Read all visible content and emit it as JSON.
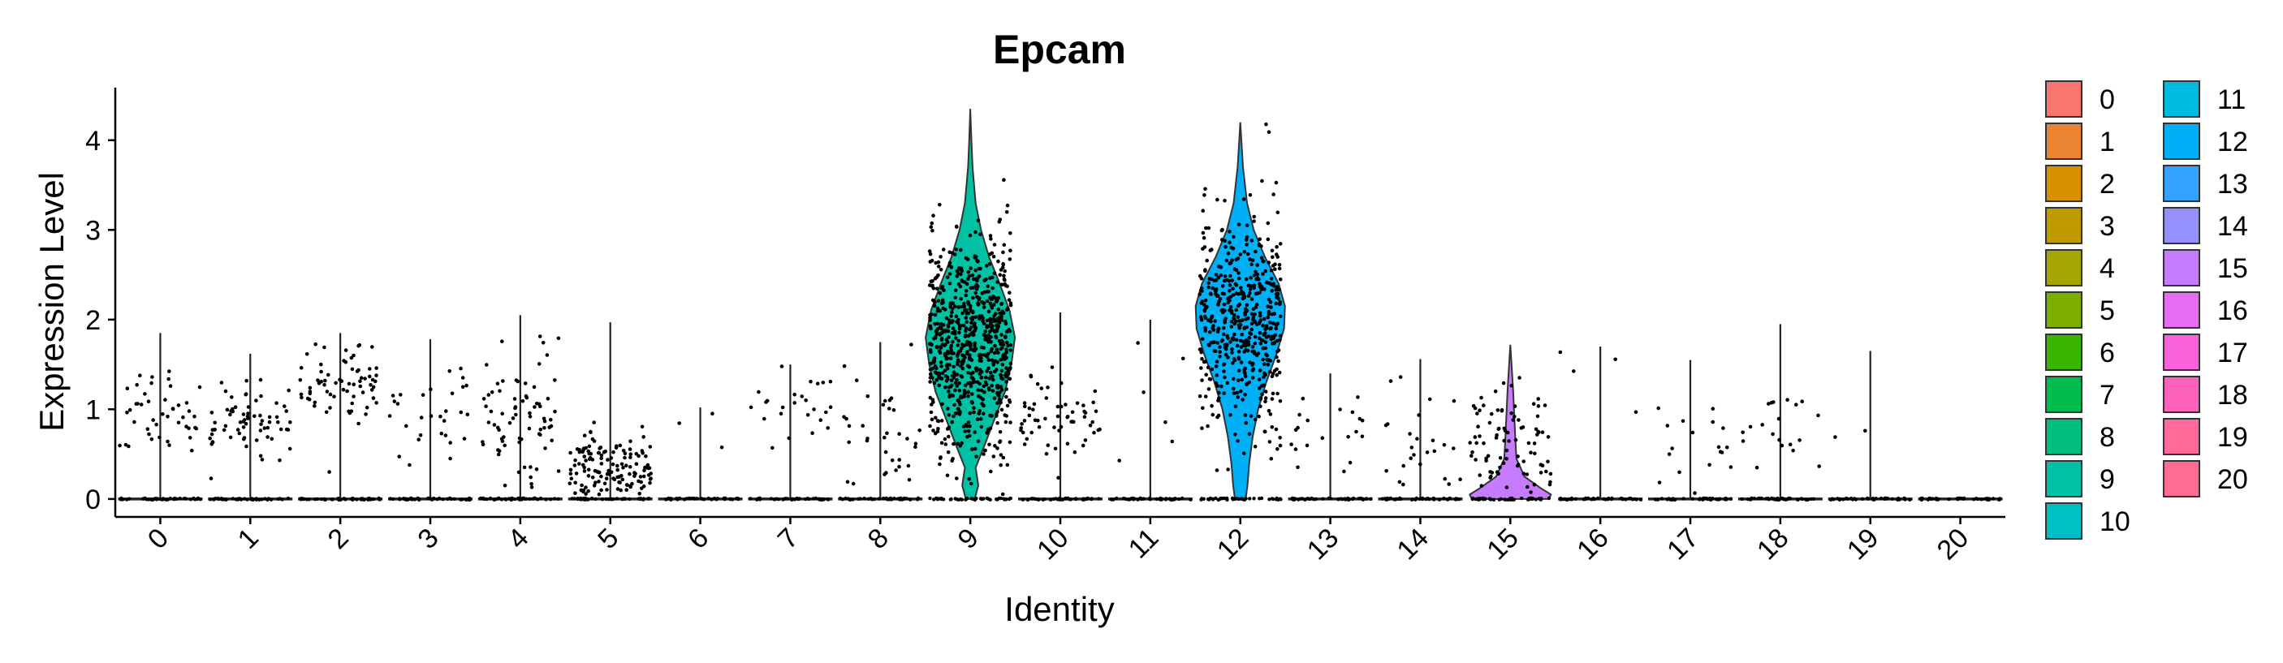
{
  "chart_data": {
    "type": "violin",
    "title": "Epcam",
    "xlabel": "Identity",
    "ylabel": "Expression Level",
    "ylim": [
      -0.2,
      4.55
    ],
    "yticks": [
      0,
      1,
      2,
      3,
      4
    ],
    "categories": [
      "0",
      "1",
      "2",
      "3",
      "4",
      "5",
      "6",
      "7",
      "8",
      "9",
      "10",
      "11",
      "12",
      "13",
      "14",
      "15",
      "16",
      "17",
      "18",
      "19",
      "20"
    ],
    "colors": [
      "#F8766D",
      "#EB8335",
      "#D89000",
      "#C09B00",
      "#A3A500",
      "#7CAE00",
      "#39B600",
      "#00BB4E",
      "#00BF7D",
      "#00C1A3",
      "#00BFC4",
      "#00BAE0",
      "#00B0F6",
      "#35A2FF",
      "#9590FF",
      "#C77CFF",
      "#E76BF3",
      "#FA62DB",
      "#FF62BC",
      "#FF6A98",
      "#FF6C91"
    ],
    "series": [
      {
        "name": "0",
        "max": 1.85,
        "jitter_cells": 45,
        "nonzero_mean": 1.0,
        "nonzero_sd": 0.25
      },
      {
        "name": "1",
        "max": 1.62,
        "jitter_cells": 70,
        "nonzero_mean": 0.85,
        "nonzero_sd": 0.2
      },
      {
        "name": "2",
        "max": 1.85,
        "jitter_cells": 70,
        "nonzero_mean": 1.35,
        "nonzero_sd": 0.25
      },
      {
        "name": "3",
        "max": 1.78,
        "jitter_cells": 30,
        "nonzero_mean": 1.0,
        "nonzero_sd": 0.25
      },
      {
        "name": "4",
        "max": 2.05,
        "jitter_cells": 75,
        "nonzero_mean": 0.9,
        "nonzero_sd": 0.35
      },
      {
        "name": "5",
        "max": 1.97,
        "jitter_cells": 140,
        "nonzero_mean": 0.35,
        "nonzero_sd": 0.18
      },
      {
        "name": "6",
        "max": 1.02,
        "jitter_cells": 3,
        "nonzero_mean": 0.7,
        "nonzero_sd": 0.3
      },
      {
        "name": "7",
        "max": 1.5,
        "jitter_cells": 25,
        "nonzero_mean": 1.1,
        "nonzero_sd": 0.25
      },
      {
        "name": "8",
        "max": 1.75,
        "jitter_cells": 35,
        "nonzero_mean": 0.75,
        "nonzero_sd": 0.35
      },
      {
        "name": "9",
        "max": 4.35,
        "jitter_cells": 750,
        "nonzero_mean": 1.75,
        "nonzero_sd": 0.62
      },
      {
        "name": "10",
        "max": 2.08,
        "jitter_cells": 60,
        "nonzero_mean": 0.95,
        "nonzero_sd": 0.3
      },
      {
        "name": "11",
        "max": 2.0,
        "jitter_cells": 6,
        "nonzero_mean": 1.0,
        "nonzero_sd": 0.5
      },
      {
        "name": "12",
        "max": 4.2,
        "jitter_cells": 520,
        "nonzero_mean": 2.0,
        "nonzero_sd": 0.58
      },
      {
        "name": "13",
        "max": 1.4,
        "jitter_cells": 20,
        "nonzero_mean": 0.8,
        "nonzero_sd": 0.25
      },
      {
        "name": "14",
        "max": 1.56,
        "jitter_cells": 25,
        "nonzero_mean": 0.7,
        "nonzero_sd": 0.35
      },
      {
        "name": "15",
        "max": 1.72,
        "jitter_cells": 90,
        "nonzero_mean": 0.6,
        "nonzero_sd": 0.3
      },
      {
        "name": "16",
        "max": 1.7,
        "jitter_cells": 4,
        "nonzero_mean": 1.3,
        "nonzero_sd": 0.3
      },
      {
        "name": "17",
        "max": 1.55,
        "jitter_cells": 18,
        "nonzero_mean": 0.7,
        "nonzero_sd": 0.35
      },
      {
        "name": "18",
        "max": 1.95,
        "jitter_cells": 20,
        "nonzero_mean": 0.9,
        "nonzero_sd": 0.35
      },
      {
        "name": "19",
        "max": 1.65,
        "jitter_cells": 2,
        "nonzero_mean": 1.0,
        "nonzero_sd": 0.5
      },
      {
        "name": "20",
        "max": 0.02,
        "jitter_cells": 0,
        "nonzero_mean": 0.0,
        "nonzero_sd": 0.0
      }
    ],
    "legend_position": "right",
    "grid": false
  }
}
